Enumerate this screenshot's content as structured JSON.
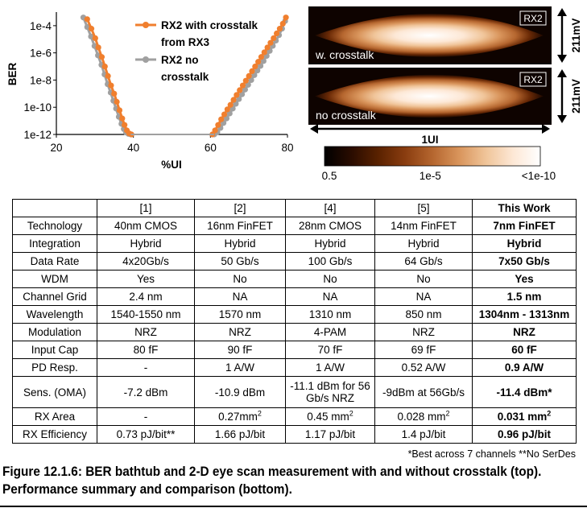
{
  "chart_data": [
    {
      "type": "line",
      "xlabel": "%UI",
      "ylabel": "BER",
      "xlim": [
        20,
        80
      ],
      "ylim": [
        1e-12,
        0.001
      ],
      "y_scale": "log",
      "grid": false,
      "legend_position": "top-right",
      "x_ticks": [
        {
          "value": 20,
          "label": "20"
        },
        {
          "value": 40,
          "label": "40"
        },
        {
          "value": 60,
          "label": "60"
        },
        {
          "value": 80,
          "label": "80"
        }
      ],
      "y_ticks": [
        {
          "value": 0.0001,
          "label": "1e-4"
        },
        {
          "value": 1e-06,
          "label": "1e-6"
        },
        {
          "value": 1e-08,
          "label": "1e-8"
        },
        {
          "value": 1e-10,
          "label": "1e-10"
        },
        {
          "value": 1e-12,
          "label": "1e-12"
        }
      ],
      "series": [
        {
          "name": "RX2 with crosstalk from RX3",
          "color": "#f07f2e",
          "left": {
            "x": [
              28.0,
              29.1,
              30.1,
              30.9,
              31.8,
              32.6,
              33.4,
              34.2,
              35.0,
              35.7,
              36.4,
              37.1,
              37.7,
              38.3,
              38.9,
              39.5
            ],
            "y": [
              0.0003,
              6e-05,
              1.2e-05,
              2.5e-06,
              5e-07,
              1e-07,
              2e-08,
              4e-09,
              1e-09,
              2.5e-10,
              6e-11,
              1.5e-11,
              5e-12,
              2e-12,
              1.2e-12,
              1e-12
            ]
          },
          "right": {
            "x": [
              60.5,
              61.2,
              62.0,
              62.8,
              63.6,
              64.4,
              65.2,
              66.0,
              66.8,
              67.6,
              68.4,
              69.2,
              70.0,
              70.8,
              71.6,
              72.4,
              73.2,
              74.0,
              74.8,
              75.6,
              76.4,
              77.2,
              78.0,
              78.8,
              79.6
            ],
            "y": [
              1e-12,
              2e-12,
              5e-12,
              1.3e-11,
              3e-11,
              7e-11,
              1.5e-10,
              3.5e-10,
              8e-10,
              1.8e-09,
              4e-09,
              9e-09,
              2e-08,
              4.5e-08,
              1e-07,
              2.2e-07,
              5e-07,
              1.1e-06,
              2.5e-06,
              5.5e-06,
              1.2e-05,
              2.7e-05,
              6e-05,
              0.00014,
              0.0004
            ]
          }
        },
        {
          "name": "RX2 no crosstalk",
          "color": "#a0a0a0",
          "left": {
            "x": [
              27.0,
              28.0,
              29.0,
              29.9,
              30.8,
              31.7,
              32.5,
              33.3,
              34.1,
              34.8,
              35.5,
              36.2,
              36.9,
              37.5,
              38.1,
              38.7,
              39.3
            ],
            "y": [
              0.0004,
              8e-05,
              1.6e-05,
              3.2e-06,
              6.5e-07,
              1.3e-07,
              2.6e-08,
              5e-09,
              1.2e-09,
              3e-10,
              8e-11,
              2e-11,
              6e-12,
              2.5e-12,
              1.4e-12,
              1.1e-12,
              1e-12
            ]
          },
          "right": {
            "x": [
              61.0,
              61.8,
              62.6,
              63.4,
              64.2,
              65.0,
              65.8,
              66.6,
              67.4,
              68.2,
              69.0,
              69.8,
              70.6,
              71.4,
              72.2,
              73.0,
              73.8,
              74.6,
              75.4,
              76.2,
              77.0,
              77.8,
              78.6,
              79.4
            ],
            "y": [
              1e-12,
              1.5e-12,
              3e-12,
              7e-12,
              1.5e-11,
              3.5e-11,
              8e-11,
              1.8e-10,
              4e-10,
              9e-10,
              2e-09,
              4.5e-09,
              1e-08,
              2.3e-08,
              5e-08,
              1.1e-07,
              2.5e-07,
              6e-07,
              1.4e-06,
              3.3e-06,
              8e-06,
              2e-05,
              6e-05,
              0.00022
            ]
          }
        }
      ]
    },
    {
      "type": "heatmap",
      "panels": [
        {
          "tag": "RX2",
          "label": "w. crosstalk",
          "height_label": "211mV"
        },
        {
          "tag": "RX2",
          "label": "no crosstalk",
          "height_label": "211mV"
        }
      ],
      "width_label": "1UI",
      "colorbar": {
        "colors": [
          "#000000",
          "#2a0c00",
          "#5a2200",
          "#8a3d10",
          "#b5662f",
          "#d9955c",
          "#f0c59a",
          "#fde8d6",
          "#ffffff"
        ],
        "tick_labels": [
          "0.5",
          "1e-5",
          "<1e-10"
        ]
      }
    }
  ],
  "table": {
    "header": [
      "",
      "[1]",
      "[2]",
      "[4]",
      "[5]",
      "This Work"
    ],
    "rows": [
      {
        "label": "Technology",
        "cells": [
          "40nm CMOS",
          "16nm FinFET",
          "28nm CMOS",
          "14nm FinFET",
          "7nm FinFET"
        ]
      },
      {
        "label": "Integration",
        "cells": [
          "Hybrid",
          "Hybrid",
          "Hybrid",
          "Hybrid",
          "Hybrid"
        ]
      },
      {
        "label": "Data Rate",
        "cells": [
          "4x20Gb/s",
          "50 Gb/s",
          "100 Gb/s",
          "64 Gb/s",
          "7x50 Gb/s"
        ]
      },
      {
        "label": "WDM",
        "cells": [
          "Yes",
          "No",
          "No",
          "No",
          "Yes"
        ]
      },
      {
        "label": "Channel Grid",
        "cells": [
          "2.4 nm",
          "NA",
          "NA",
          "NA",
          "1.5 nm"
        ]
      },
      {
        "label": "Wavelength",
        "cells": [
          "1540-1550 nm",
          "1570 nm",
          "1310 nm",
          "850 nm",
          "1304nm - 1313nm"
        ]
      },
      {
        "label": "Modulation",
        "cells": [
          "NRZ",
          "NRZ",
          "4-PAM",
          "NRZ",
          "NRZ"
        ]
      },
      {
        "label": "Input Cap",
        "cells": [
          "80 fF",
          "90 fF",
          "70 fF",
          "69 fF",
          "60 fF"
        ]
      },
      {
        "label": "PD Resp.",
        "cells": [
          "-",
          "1 A/W",
          "1 A/W",
          "0.52 A/W",
          "0.9 A/W"
        ]
      },
      {
        "label": "Sens. (OMA)",
        "cells": [
          "-7.2 dBm",
          "-10.9 dBm",
          "-11.1 dBm for 56 Gb/s NRZ",
          "-9dBm at 56Gb/s",
          "-11.4 dBm*"
        ]
      },
      {
        "label": "RX Area",
        "cells": [
          "-",
          "0.27mm",
          "0.45 mm",
          "0.028 mm",
          "0.031 mm"
        ],
        "sup": [
          "",
          "2",
          "2",
          "2",
          "2"
        ]
      },
      {
        "label": "RX Efficiency",
        "cells": [
          "0.73 pJ/bit**",
          "1.66 pJ/bit",
          "1.17 pJ/bit",
          "1.4 pJ/bit",
          "0.96 pJ/bit"
        ]
      }
    ]
  },
  "footnote": "*Best across 7 channels **No SerDes",
  "caption": "Figure 12.1.6: BER bathtub and 2-D eye scan measurement with and without crosstalk (top). Performance summary and comparison (bottom)."
}
